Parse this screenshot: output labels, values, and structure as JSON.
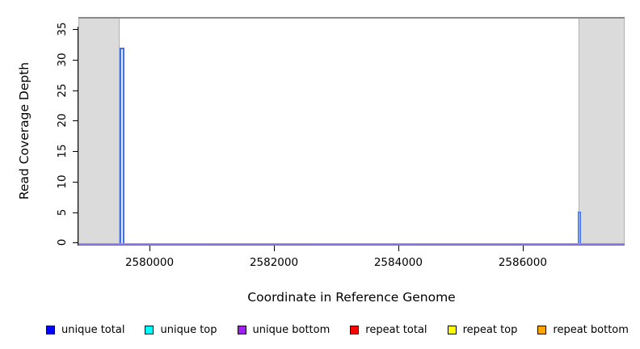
{
  "chart_data": {
    "type": "bar",
    "title": "",
    "xlabel": "Coordinate in Reference Genome",
    "ylabel": "Read Coverage Depth",
    "xlim": [
      2578857,
      2587638
    ],
    "ylim": [
      -0.5,
      37
    ],
    "xticks": [
      2580000,
      2582000,
      2584000,
      2586000
    ],
    "yticks": [
      0,
      5,
      10,
      15,
      20,
      25,
      30,
      35
    ],
    "grid": false,
    "legend_position": "bottom",
    "shaded_regions": [
      {
        "x0": 2578857,
        "x1": 2579520,
        "color": "#dbdbdb"
      },
      {
        "x0": 2586900,
        "x1": 2587638,
        "color": "#dbdbdb"
      }
    ],
    "series": [
      {
        "name": "unique total",
        "color": "#0000FF",
        "baseline": 0,
        "points": [
          {
            "x": 2579560,
            "y": 32,
            "w": 78
          },
          {
            "x": 2586916,
            "y": 5,
            "w": 52
          }
        ]
      },
      {
        "name": "unique top",
        "color": "#00FFFF",
        "baseline": 0,
        "points": []
      },
      {
        "name": "unique bottom",
        "color": "#A020F0",
        "baseline": 0,
        "points": []
      },
      {
        "name": "repeat total",
        "color": "#FF0000",
        "baseline": 0,
        "points": []
      },
      {
        "name": "repeat top",
        "color": "#FFFF00",
        "baseline": 0,
        "points": []
      },
      {
        "name": "repeat bottom",
        "color": "#FFA500",
        "baseline": 0,
        "points": []
      }
    ],
    "legend": [
      {
        "label": "unique total",
        "color": "#0000FF"
      },
      {
        "label": "unique top",
        "color": "#00FFFF"
      },
      {
        "label": "unique bottom",
        "color": "#A020F0"
      },
      {
        "label": "repeat total",
        "color": "#FF0000"
      },
      {
        "label": "repeat top",
        "color": "#FFFF00"
      },
      {
        "label": "repeat bottom",
        "color": "#FFA500"
      }
    ]
  }
}
